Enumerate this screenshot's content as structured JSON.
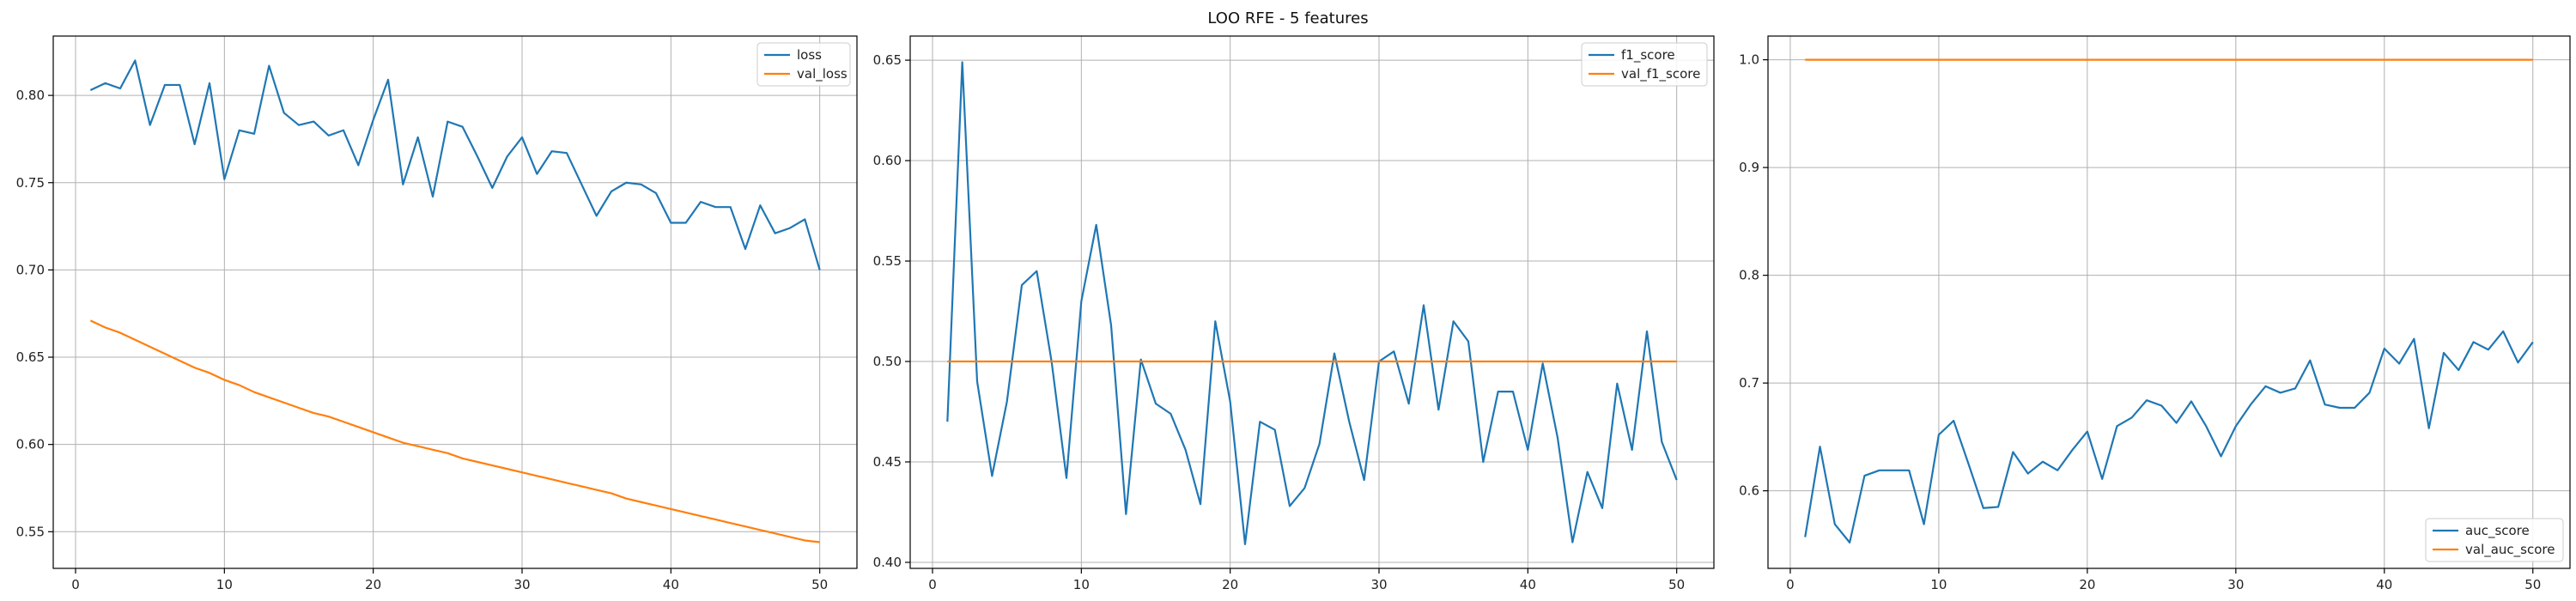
{
  "figure": {
    "title": "LOO RFE - 5 features"
  },
  "colors": {
    "series1": "#1f77b4",
    "series2": "#ff7f0e",
    "grid": "#b0b0b0",
    "axis": "#000000"
  },
  "chart_data": [
    {
      "type": "line",
      "title": "",
      "xlabel": "",
      "ylabel": "",
      "grid": true,
      "legend_position": "top-right",
      "xlim": [
        -1.5,
        52.5
      ],
      "ylim": [
        0.529,
        0.834
      ],
      "xticks": [
        0,
        10,
        20,
        30,
        40,
        50
      ],
      "yticks": [
        0.55,
        0.6,
        0.65,
        0.7,
        0.75,
        0.8
      ],
      "x": [
        1,
        2,
        3,
        4,
        5,
        6,
        7,
        8,
        9,
        10,
        11,
        12,
        13,
        14,
        15,
        16,
        17,
        18,
        19,
        20,
        21,
        22,
        23,
        24,
        25,
        26,
        27,
        28,
        29,
        30,
        31,
        32,
        33,
        34,
        35,
        36,
        37,
        38,
        39,
        40,
        41,
        42,
        43,
        44,
        45,
        46,
        47,
        48,
        49,
        50
      ],
      "series": [
        {
          "name": "loss",
          "color": "#1f77b4",
          "values": [
            0.803,
            0.807,
            0.804,
            0.82,
            0.783,
            0.806,
            0.806,
            0.772,
            0.807,
            0.752,
            0.78,
            0.778,
            0.817,
            0.79,
            0.783,
            0.785,
            0.777,
            0.78,
            0.76,
            0.786,
            0.809,
            0.749,
            0.776,
            0.742,
            0.785,
            0.782,
            0.765,
            0.747,
            0.765,
            0.776,
            0.755,
            0.768,
            0.767,
            0.749,
            0.731,
            0.745,
            0.75,
            0.749,
            0.744,
            0.727,
            0.727,
            0.739,
            0.736,
            0.736,
            0.712,
            0.737,
            0.721,
            0.724,
            0.729,
            0.7
          ]
        },
        {
          "name": "val_loss",
          "color": "#ff7f0e",
          "values": [
            0.671,
            0.667,
            0.664,
            0.66,
            0.656,
            0.652,
            0.648,
            0.644,
            0.641,
            0.637,
            0.634,
            0.63,
            0.627,
            0.624,
            0.621,
            0.618,
            0.616,
            0.613,
            0.61,
            0.607,
            0.604,
            0.601,
            0.599,
            0.597,
            0.595,
            0.592,
            0.59,
            0.588,
            0.586,
            0.584,
            0.582,
            0.58,
            0.578,
            0.576,
            0.574,
            0.572,
            0.569,
            0.567,
            0.565,
            0.563,
            0.561,
            0.559,
            0.557,
            0.555,
            0.553,
            0.551,
            0.549,
            0.547,
            0.545,
            0.544
          ]
        }
      ]
    },
    {
      "type": "line",
      "title": "",
      "xlabel": "",
      "ylabel": "",
      "grid": true,
      "legend_position": "top-right",
      "xlim": [
        -1.5,
        52.5
      ],
      "ylim": [
        0.397,
        0.662
      ],
      "xticks": [
        0,
        10,
        20,
        30,
        40,
        50
      ],
      "yticks": [
        0.4,
        0.45,
        0.5,
        0.55,
        0.6,
        0.65
      ],
      "x": [
        1,
        2,
        3,
        4,
        5,
        6,
        7,
        8,
        9,
        10,
        11,
        12,
        13,
        14,
        15,
        16,
        17,
        18,
        19,
        20,
        21,
        22,
        23,
        24,
        25,
        26,
        27,
        28,
        29,
        30,
        31,
        32,
        33,
        34,
        35,
        36,
        37,
        38,
        39,
        40,
        41,
        42,
        43,
        44,
        45,
        46,
        47,
        48,
        49,
        50
      ],
      "series": [
        {
          "name": "f1_score",
          "color": "#1f77b4",
          "values": [
            0.47,
            0.649,
            0.49,
            0.443,
            0.48,
            0.538,
            0.545,
            0.5,
            0.442,
            0.53,
            0.568,
            0.518,
            0.424,
            0.501,
            0.479,
            0.474,
            0.456,
            0.429,
            0.52,
            0.48,
            0.409,
            0.47,
            0.466,
            0.428,
            0.437,
            0.459,
            0.504,
            0.47,
            0.441,
            0.5,
            0.505,
            0.479,
            0.528,
            0.476,
            0.52,
            0.51,
            0.45,
            0.485,
            0.485,
            0.456,
            0.499,
            0.462,
            0.41,
            0.445,
            0.427,
            0.489,
            0.456,
            0.515,
            0.46,
            0.441
          ]
        },
        {
          "name": "val_f1_score",
          "color": "#ff7f0e",
          "values": [
            0.5,
            0.5,
            0.5,
            0.5,
            0.5,
            0.5,
            0.5,
            0.5,
            0.5,
            0.5,
            0.5,
            0.5,
            0.5,
            0.5,
            0.5,
            0.5,
            0.5,
            0.5,
            0.5,
            0.5,
            0.5,
            0.5,
            0.5,
            0.5,
            0.5,
            0.5,
            0.5,
            0.5,
            0.5,
            0.5,
            0.5,
            0.5,
            0.5,
            0.5,
            0.5,
            0.5,
            0.5,
            0.5,
            0.5,
            0.5,
            0.5,
            0.5,
            0.5,
            0.5,
            0.5,
            0.5,
            0.5,
            0.5,
            0.5,
            0.5
          ]
        }
      ]
    },
    {
      "type": "line",
      "title": "",
      "xlabel": "",
      "ylabel": "",
      "grid": true,
      "legend_position": "bottom-right",
      "xlim": [
        -1.5,
        52.5
      ],
      "ylim": [
        0.528,
        1.022
      ],
      "xticks": [
        0,
        10,
        20,
        30,
        40,
        50
      ],
      "yticks": [
        0.6,
        0.7,
        0.8,
        0.9,
        1.0
      ],
      "x": [
        1,
        2,
        3,
        4,
        5,
        6,
        7,
        8,
        9,
        10,
        11,
        12,
        13,
        14,
        15,
        16,
        17,
        18,
        19,
        20,
        21,
        22,
        23,
        24,
        25,
        26,
        27,
        28,
        29,
        30,
        31,
        32,
        33,
        34,
        35,
        36,
        37,
        38,
        39,
        40,
        41,
        42,
        43,
        44,
        45,
        46,
        47,
        48,
        49,
        50
      ],
      "series": [
        {
          "name": "auc_score",
          "color": "#1f77b4",
          "values": [
            0.557,
            0.641,
            0.569,
            0.552,
            0.614,
            0.619,
            0.619,
            0.619,
            0.569,
            0.652,
            0.665,
            0.625,
            0.584,
            0.585,
            0.636,
            0.616,
            0.627,
            0.619,
            0.638,
            0.655,
            0.611,
            0.66,
            0.668,
            0.684,
            0.679,
            0.663,
            0.683,
            0.66,
            0.632,
            0.66,
            0.68,
            0.697,
            0.691,
            0.695,
            0.721,
            0.68,
            0.677,
            0.677,
            0.691,
            0.732,
            0.718,
            0.741,
            0.658,
            0.728,
            0.712,
            0.738,
            0.731,
            0.748,
            0.719,
            0.738
          ]
        },
        {
          "name": "val_auc_score",
          "color": "#ff7f0e",
          "values": [
            1.0,
            1.0,
            1.0,
            1.0,
            1.0,
            1.0,
            1.0,
            1.0,
            1.0,
            1.0,
            1.0,
            1.0,
            1.0,
            1.0,
            1.0,
            1.0,
            1.0,
            1.0,
            1.0,
            1.0,
            1.0,
            1.0,
            1.0,
            1.0,
            1.0,
            1.0,
            1.0,
            1.0,
            1.0,
            1.0,
            1.0,
            1.0,
            1.0,
            1.0,
            1.0,
            1.0,
            1.0,
            1.0,
            1.0,
            1.0,
            1.0,
            1.0,
            1.0,
            1.0,
            1.0,
            1.0,
            1.0,
            1.0,
            1.0,
            1.0
          ]
        }
      ]
    }
  ]
}
